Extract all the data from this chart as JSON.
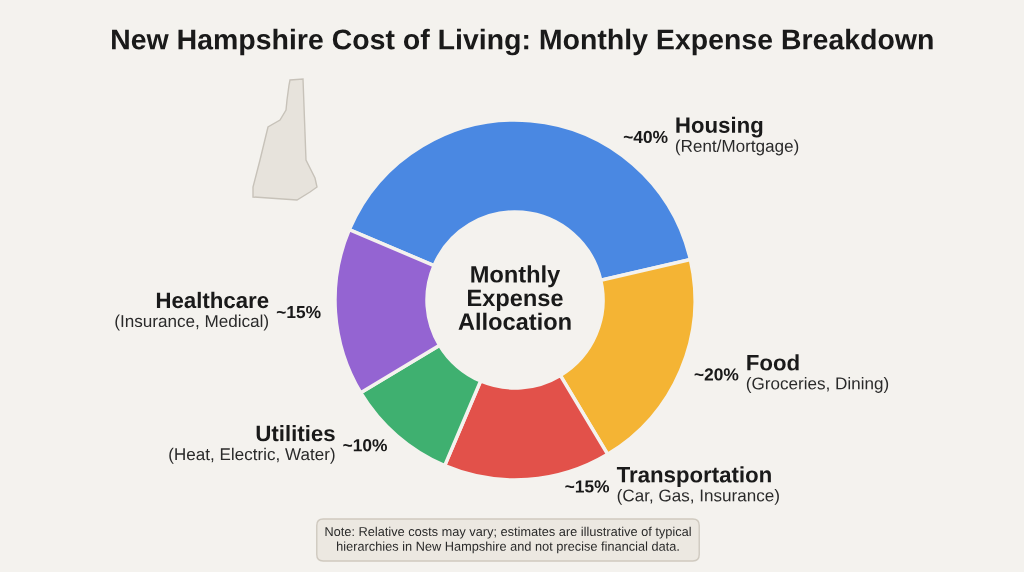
{
  "chart_data": {
    "type": "donut",
    "title": "New Hampshire Cost of Living: Monthly Expense Breakdown",
    "categories": [
      "Housing",
      "Food",
      "Transportation",
      "Utilities",
      "Healthcare"
    ],
    "values": [
      40,
      20,
      15,
      10,
      15
    ],
    "colors": [
      "#4a88e2",
      "#f4b434",
      "#e2514a",
      "#3fb070",
      "#9464d2"
    ],
    "value_labels": [
      "~40%",
      "~20%",
      "~15%",
      "~10%",
      "~15%"
    ],
    "annotations": [
      "(Rent/Mortgage)",
      "(Groceries, Dining)",
      "(Car, Gas, Insurance)",
      "(Heat, Electric, Water)",
      "(Insurance, Medical)",
      "Monthly\nExpense\nAllocation",
      "Note: Relative costs may vary; estimates are illustrative of typical\nhierarchies in New Hampshire and not precise financial data."
    ]
  }
}
